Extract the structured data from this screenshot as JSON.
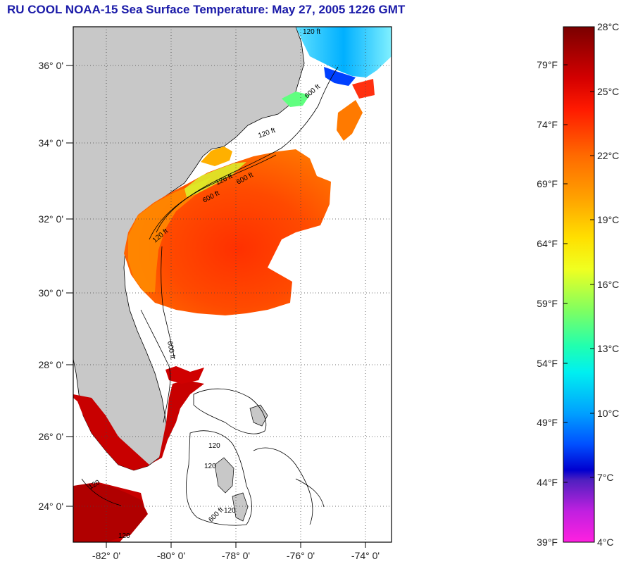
{
  "header": {
    "title": "RU COOL  NOAA-15  Sea Surface Temperature:  May 27, 2005 1226 GMT"
  },
  "map": {
    "lat_labels": [
      "36° 0'",
      "34° 0'",
      "32° 0'",
      "30° 0'",
      "28° 0'",
      "26° 0'",
      "24° 0'"
    ],
    "lon_labels": [
      "-82° 0'",
      "-80° 0'",
      "-78° 0'",
      "-76° 0'",
      "-74° 0'"
    ],
    "contour_labels": [
      "120 ft",
      "600 ft",
      "120 ft",
      "600 ft",
      "120 ft",
      "600 ft",
      "120 ft",
      "600 ft",
      "120",
      "120",
      "120",
      "600 ft",
      "120",
      "120"
    ],
    "land_color": "#c8c8c8",
    "ocean_color": "#ffffff"
  },
  "colorbar": {
    "fahrenheit_labels": [
      "79°F",
      "74°F",
      "69°F",
      "64°F",
      "59°F",
      "54°F",
      "49°F",
      "44°F",
      "39°F"
    ],
    "celsius_labels": [
      "28°C",
      "25°C",
      "22°C",
      "19°C",
      "16°C",
      "13°C",
      "10°C",
      "7°C",
      "4°C"
    ]
  }
}
